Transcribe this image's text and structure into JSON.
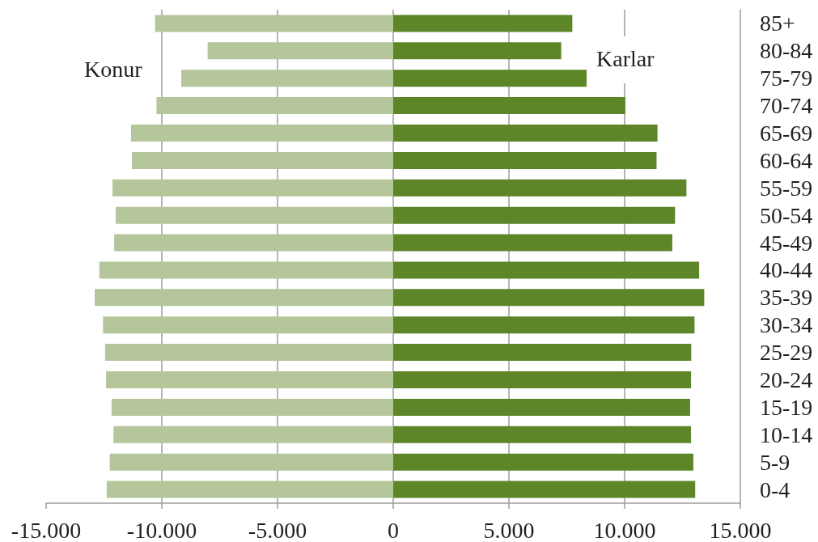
{
  "chart_data": {
    "type": "bar",
    "orientation": "horizontal",
    "stacked": true,
    "categories": [
      "85+",
      "80-84",
      "75-79",
      "70-74",
      "65-69",
      "60-64",
      "55-59",
      "50-54",
      "45-49",
      "40-44",
      "35-39",
      "30-34",
      "25-29",
      "20-24",
      "15-19",
      "10-14",
      "5-9",
      "0-4"
    ],
    "series": [
      {
        "name": "Konur",
        "color": "#b5c69a",
        "values": [
          -10290,
          -8020,
          -9160,
          -10230,
          -11330,
          -11290,
          -12130,
          -11990,
          -12060,
          -12700,
          -12900,
          -12540,
          -12450,
          -12410,
          -12170,
          -12090,
          -12250,
          -12380
        ]
      },
      {
        "name": "Karlar",
        "color": "#5d8629",
        "values": [
          7740,
          7260,
          8360,
          10030,
          11420,
          11380,
          12670,
          12180,
          12060,
          13220,
          13440,
          13020,
          12880,
          12870,
          12830,
          12870,
          12970,
          13050
        ]
      }
    ],
    "xlim": [
      -15000,
      15000
    ],
    "xticks": [
      {
        "value": -15000,
        "label": "-15.000"
      },
      {
        "value": -10000,
        "label": "-10.000"
      },
      {
        "value": -5000,
        "label": "-5.000"
      },
      0,
      {
        "value": 5000,
        "label": "5.000"
      },
      {
        "value": 10000,
        "label": "10.000"
      },
      {
        "value": 15000,
        "label": "15.000"
      }
    ],
    "grid": "x"
  }
}
